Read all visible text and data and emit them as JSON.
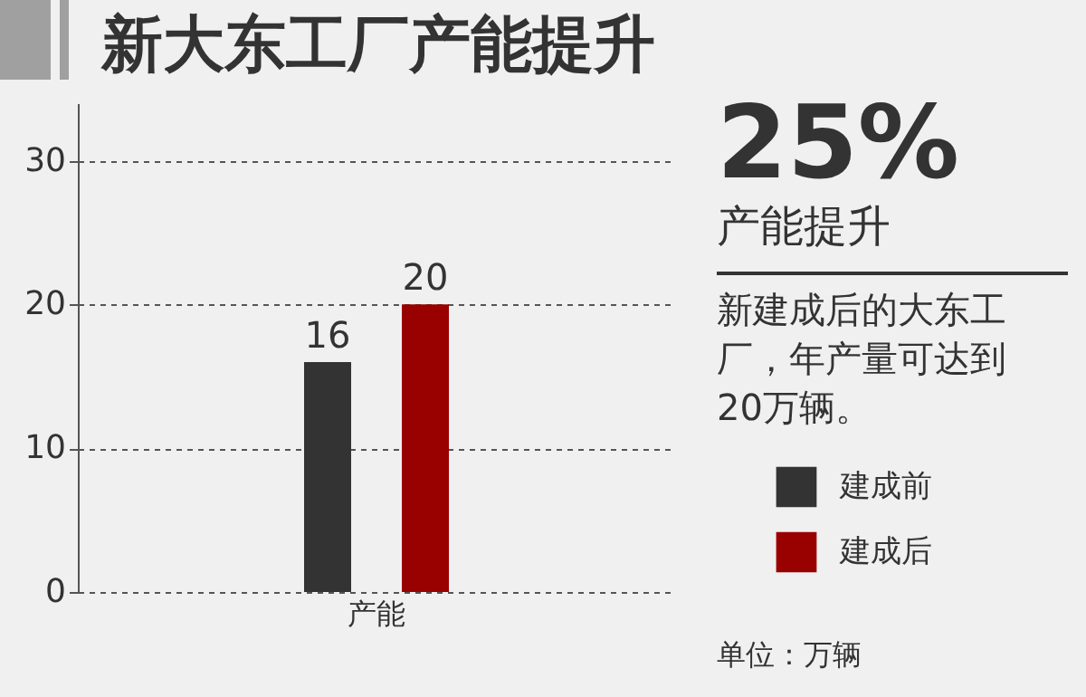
{
  "chart_data": {
    "type": "bar",
    "title": "新大东工厂产能提升",
    "categories": [
      "产能"
    ],
    "series": [
      {
        "name": "建成前",
        "color": "#333333",
        "values": [
          16
        ]
      },
      {
        "name": "建成后",
        "color": "#990000",
        "values": [
          20
        ]
      }
    ],
    "ylim": [
      0,
      34
    ],
    "yticks": [
      0,
      10,
      20,
      30
    ],
    "grid": "y",
    "legend": "right",
    "data_labels": true,
    "annotations": [
      "25%",
      "产能提升",
      "新建成后的大东工厂，年产量可达到20万辆。",
      "单位：万辆"
    ]
  }
}
